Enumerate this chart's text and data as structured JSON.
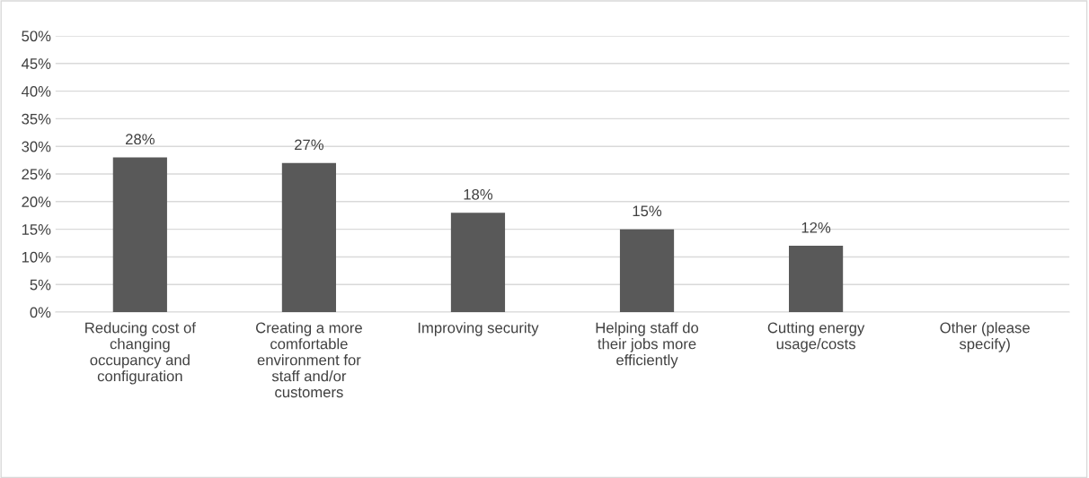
{
  "chart_data": {
    "type": "bar",
    "categories": [
      "Reducing cost of\nchanging\noccupancy and\nconfiguration",
      "Creating a more\ncomfortable\nenvironment for\nstaff and/or\ncustomers",
      "Improving security",
      "Helping staff do\ntheir jobs more\nefficiently",
      "Cutting energy\nusage/costs",
      "Other (please\nspecify)"
    ],
    "values": [
      28,
      27,
      18,
      15,
      12,
      0
    ],
    "value_labels": [
      "28%",
      "27%",
      "18%",
      "15%",
      "12%",
      null
    ],
    "color": "#595959",
    "ylim": [
      0,
      50
    ],
    "yticks": [
      {
        "value": 0,
        "label": "0%"
      },
      {
        "value": 5,
        "label": "5%"
      },
      {
        "value": 10,
        "label": "10%"
      },
      {
        "value": 15,
        "label": "15%"
      },
      {
        "value": 20,
        "label": "20%"
      },
      {
        "value": 25,
        "label": "25%"
      },
      {
        "value": 30,
        "label": "30%"
      },
      {
        "value": 35,
        "label": "35%"
      },
      {
        "value": 40,
        "label": "40%"
      },
      {
        "value": 45,
        "label": "45%"
      },
      {
        "value": 50,
        "label": "50%"
      }
    ],
    "grid": "y"
  }
}
